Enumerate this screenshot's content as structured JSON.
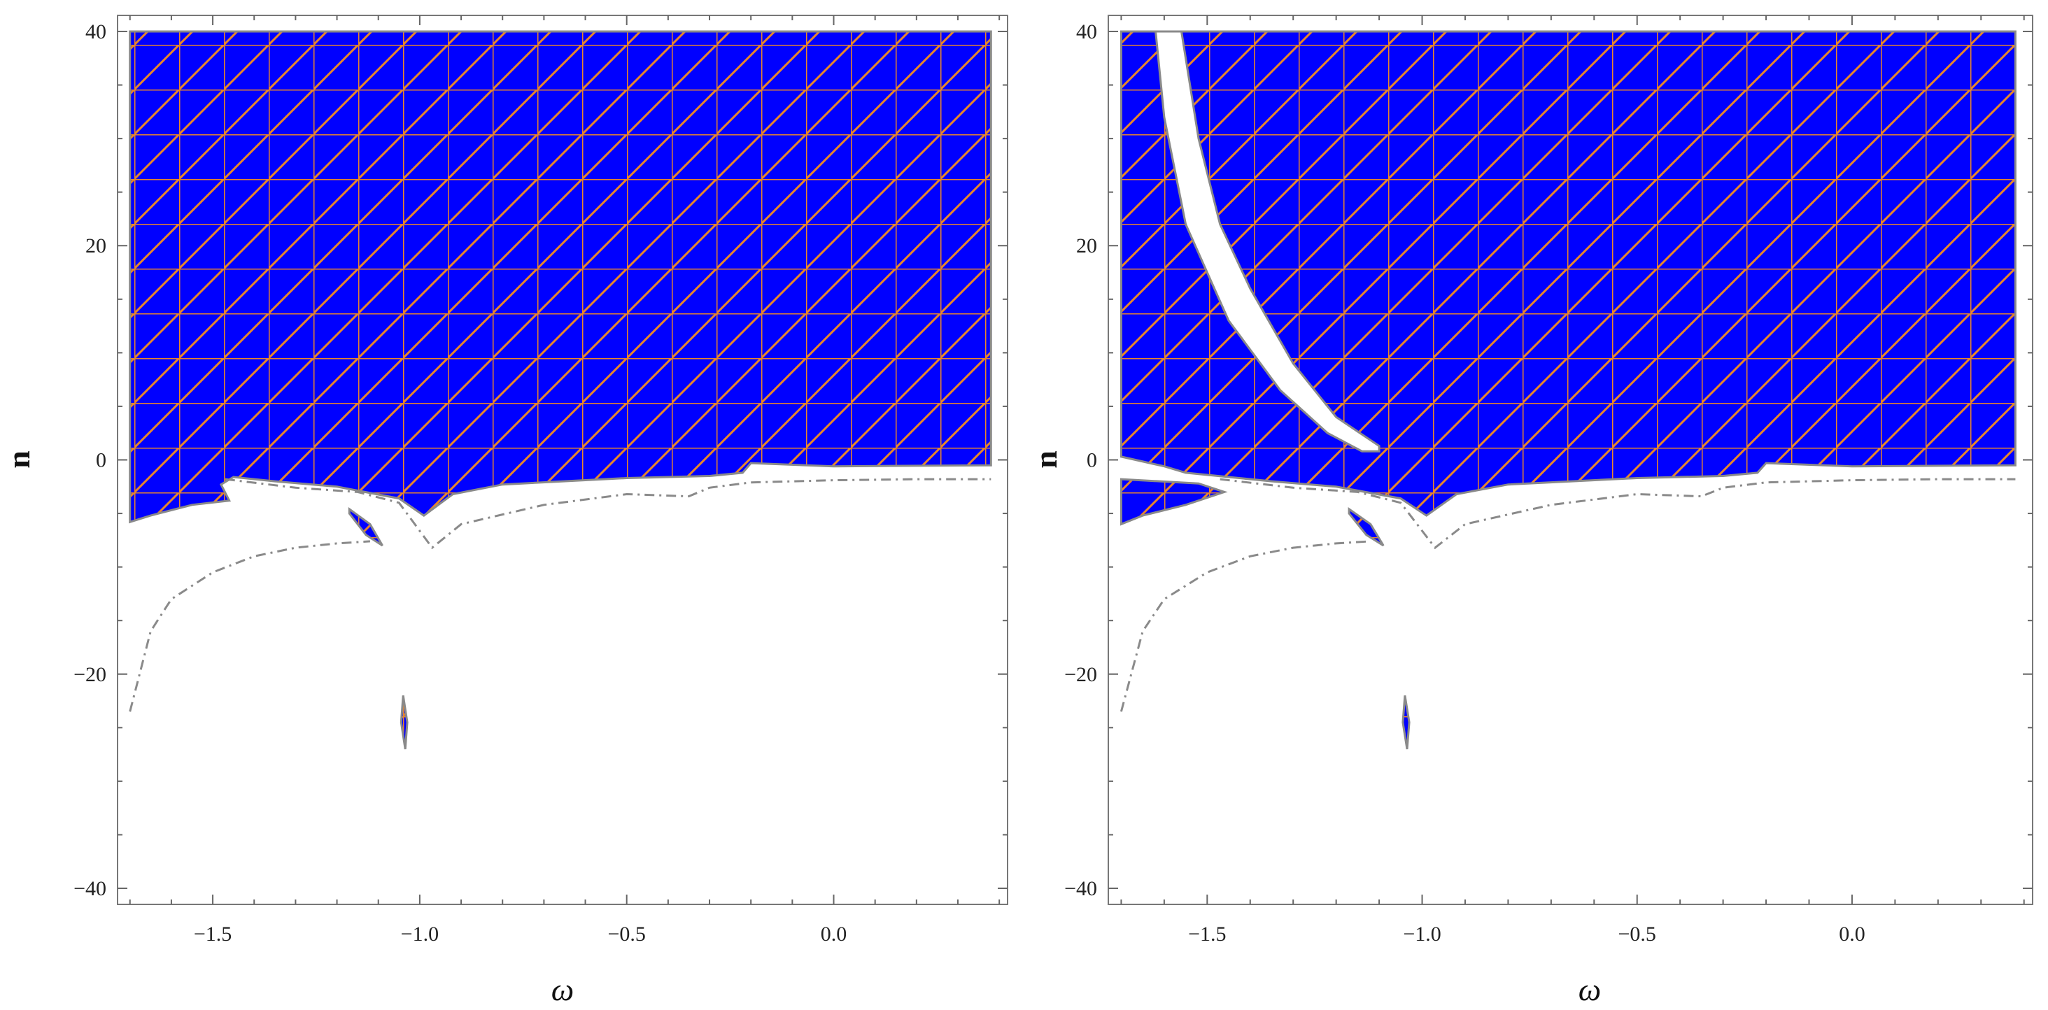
{
  "chart_data": [
    {
      "type": "area",
      "panel": "left",
      "xlabel": "ω",
      "ylabel": "n",
      "xlim": [
        -1.73,
        0.42
      ],
      "ylim": [
        -41.5,
        41.5
      ],
      "x_ticks": [
        -1.5,
        -1.0,
        -0.5,
        0.0
      ],
      "x_tick_labels": [
        "−1.5",
        "−1.0",
        "−0.5",
        "0.0"
      ],
      "y_ticks": [
        -40,
        -20,
        0,
        20,
        40
      ],
      "y_tick_labels": [
        "−40",
        "−20",
        "0",
        "20",
        "40"
      ],
      "grid": false,
      "legend": "none",
      "fill_color": "#0000ff",
      "mesh_color": "#e8862a",
      "boundary_line_color": "#8a8a8a",
      "series": [
        {
          "kind": "region",
          "points": [
            [
              -1.7,
              40
            ],
            [
              0.38,
              40
            ],
            [
              0.38,
              -0.5
            ],
            [
              0.0,
              -0.6
            ],
            [
              -0.2,
              -0.3
            ],
            [
              -0.22,
              -1.2
            ],
            [
              -0.3,
              -1.5
            ],
            [
              -0.5,
              -1.7
            ],
            [
              -0.8,
              -2.3
            ],
            [
              -0.92,
              -3.2
            ],
            [
              -0.99,
              -5.2
            ],
            [
              -1.05,
              -3.6
            ],
            [
              -1.2,
              -2.5
            ],
            [
              -1.35,
              -2.0
            ],
            [
              -1.45,
              -1.6
            ],
            [
              -1.48,
              -2.3
            ],
            [
              -1.46,
              -3.8
            ],
            [
              -1.55,
              -4.2
            ],
            [
              -1.65,
              -5.2
            ],
            [
              -1.7,
              -5.8
            ]
          ]
        },
        {
          "kind": "region",
          "points": [
            [
              -1.17,
              -4.6
            ],
            [
              -1.12,
              -6.0
            ],
            [
              -1.09,
              -8.0
            ],
            [
              -1.13,
              -7.0
            ],
            [
              -1.17,
              -5.0
            ]
          ]
        },
        {
          "kind": "region",
          "points": [
            [
              -1.04,
              -22.0
            ],
            [
              -1.03,
              -24.5
            ],
            [
              -1.035,
              -27.0
            ],
            [
              -1.045,
              -24.5
            ]
          ]
        },
        {
          "kind": "boundary",
          "points": [
            [
              -1.47,
              -1.8
            ],
            [
              -1.3,
              -2.6
            ],
            [
              -1.15,
              -3.0
            ],
            [
              -1.05,
              -4.0
            ],
            [
              -0.97,
              -8.2
            ],
            [
              -0.9,
              -6.0
            ],
            [
              -0.7,
              -4.2
            ],
            [
              -0.5,
              -3.2
            ],
            [
              -0.35,
              -3.4
            ],
            [
              -0.3,
              -2.6
            ],
            [
              -0.2,
              -2.1
            ],
            [
              0.0,
              -1.9
            ],
            [
              0.2,
              -1.8
            ],
            [
              0.38,
              -1.8
            ]
          ]
        },
        {
          "kind": "boundary",
          "points": [
            [
              -1.7,
              -23.5
            ],
            [
              -1.65,
              -16.0
            ],
            [
              -1.6,
              -13.0
            ],
            [
              -1.5,
              -10.5
            ],
            [
              -1.4,
              -9.0
            ],
            [
              -1.3,
              -8.2
            ],
            [
              -1.2,
              -7.8
            ],
            [
              -1.12,
              -7.6
            ]
          ]
        }
      ]
    },
    {
      "type": "area",
      "panel": "right",
      "xlabel": "ω",
      "ylabel": "n",
      "xlim": [
        -1.73,
        0.42
      ],
      "ylim": [
        -41.5,
        41.5
      ],
      "x_ticks": [
        -1.5,
        -1.0,
        -0.5,
        0.0
      ],
      "x_tick_labels": [
        "−1.5",
        "−1.0",
        "−0.5",
        "0.0"
      ],
      "y_ticks": [
        -40,
        -20,
        0,
        20,
        40
      ],
      "y_tick_labels": [
        "−40",
        "−20",
        "0",
        "20",
        "40"
      ],
      "grid": false,
      "legend": "none",
      "fill_color": "#0000ff",
      "mesh_color": "#e8862a",
      "boundary_line_color": "#8a8a8a",
      "series": [
        {
          "kind": "region",
          "points": [
            [
              -1.7,
              40
            ],
            [
              0.38,
              40
            ],
            [
              0.38,
              -0.5
            ],
            [
              0.0,
              -0.6
            ],
            [
              -0.2,
              -0.3
            ],
            [
              -0.22,
              -1.2
            ],
            [
              -0.3,
              -1.5
            ],
            [
              -0.5,
              -1.7
            ],
            [
              -0.8,
              -2.3
            ],
            [
              -0.92,
              -3.2
            ],
            [
              -0.99,
              -5.2
            ],
            [
              -1.05,
              -3.6
            ],
            [
              -1.2,
              -2.5
            ],
            [
              -1.35,
              -2.0
            ],
            [
              -1.45,
              -1.6
            ],
            [
              -1.55,
              -1.2
            ],
            [
              -1.6,
              -0.6
            ],
            [
              -1.7,
              0.3
            ]
          ]
        },
        {
          "kind": "region",
          "points": [
            [
              -1.7,
              -1.8
            ],
            [
              -1.52,
              -2.2
            ],
            [
              -1.46,
              -3.0
            ],
            [
              -1.55,
              -4.2
            ],
            [
              -1.65,
              -5.2
            ],
            [
              -1.7,
              -6.0
            ]
          ]
        },
        {
          "kind": "region",
          "points": [
            [
              -1.17,
              -4.6
            ],
            [
              -1.12,
              -6.0
            ],
            [
              -1.09,
              -8.0
            ],
            [
              -1.13,
              -7.0
            ],
            [
              -1.17,
              -5.0
            ]
          ]
        },
        {
          "kind": "region",
          "points": [
            [
              -1.04,
              -22.0
            ],
            [
              -1.03,
              -24.5
            ],
            [
              -1.035,
              -27.0
            ],
            [
              -1.045,
              -24.5
            ]
          ]
        },
        {
          "kind": "gap",
          "points": [
            [
              -1.62,
              40
            ],
            [
              -1.56,
              40
            ],
            [
              -1.52,
              30
            ],
            [
              -1.47,
              22
            ],
            [
              -1.4,
              16
            ],
            [
              -1.3,
              9
            ],
            [
              -1.2,
              4
            ],
            [
              -1.1,
              1.3
            ],
            [
              -1.1,
              0.8
            ],
            [
              -1.14,
              0.8
            ],
            [
              -1.22,
              2.5
            ],
            [
              -1.33,
              6.5
            ],
            [
              -1.45,
              13
            ],
            [
              -1.55,
              22
            ],
            [
              -1.6,
              32
            ]
          ]
        },
        {
          "kind": "boundary",
          "points": [
            [
              -1.47,
              -1.8
            ],
            [
              -1.3,
              -2.6
            ],
            [
              -1.15,
              -3.0
            ],
            [
              -1.05,
              -4.0
            ],
            [
              -0.97,
              -8.2
            ],
            [
              -0.9,
              -6.0
            ],
            [
              -0.7,
              -4.2
            ],
            [
              -0.5,
              -3.2
            ],
            [
              -0.35,
              -3.4
            ],
            [
              -0.3,
              -2.6
            ],
            [
              -0.2,
              -2.1
            ],
            [
              0.0,
              -1.9
            ],
            [
              0.2,
              -1.8
            ],
            [
              0.38,
              -1.8
            ]
          ]
        },
        {
          "kind": "boundary",
          "points": [
            [
              -1.7,
              -23.5
            ],
            [
              -1.65,
              -16.0
            ],
            [
              -1.6,
              -13.0
            ],
            [
              -1.5,
              -10.5
            ],
            [
              -1.4,
              -9.0
            ],
            [
              -1.3,
              -8.2
            ],
            [
              -1.2,
              -7.8
            ],
            [
              -1.12,
              -7.6
            ]
          ]
        }
      ]
    }
  ]
}
